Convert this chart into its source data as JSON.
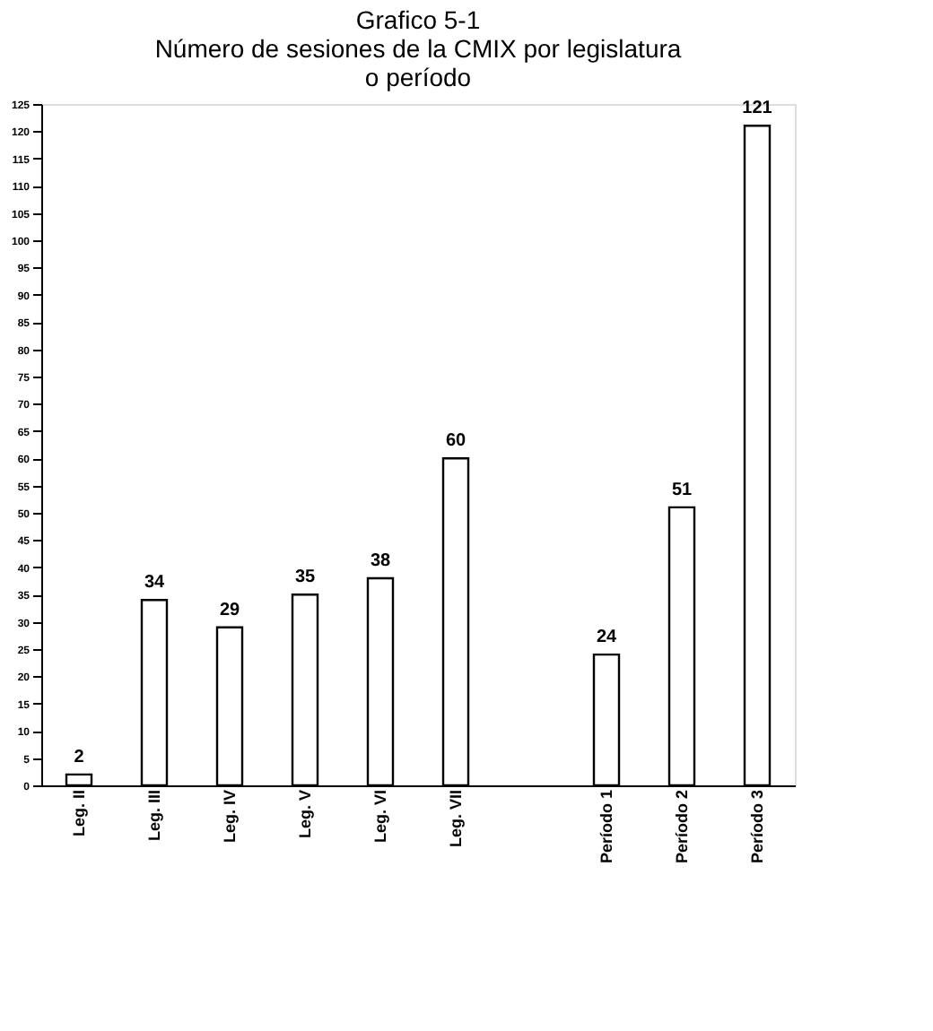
{
  "chart_data": {
    "type": "bar",
    "title": [
      "Grafico 5-1",
      "Número de sesiones de la CMIX por legislatura",
      "o período"
    ],
    "categories": [
      "Leg. II",
      "Leg. III",
      "Leg. IV",
      "Leg. V",
      "Leg. VI",
      "Leg. VII",
      null,
      "Período 1",
      "Período 2",
      "Período 3"
    ],
    "values": [
      2,
      34,
      29,
      35,
      38,
      60,
      null,
      24,
      51,
      121
    ],
    "color": "#ffffff",
    "ylim": [
      0,
      125
    ],
    "yticks": [
      0,
      5,
      10,
      15,
      20,
      25,
      30,
      35,
      40,
      45,
      50,
      55,
      60,
      65,
      70,
      75,
      80,
      85,
      90,
      95,
      100,
      105,
      110,
      115,
      120,
      125
    ],
    "grid": false,
    "data_labels": true
  }
}
